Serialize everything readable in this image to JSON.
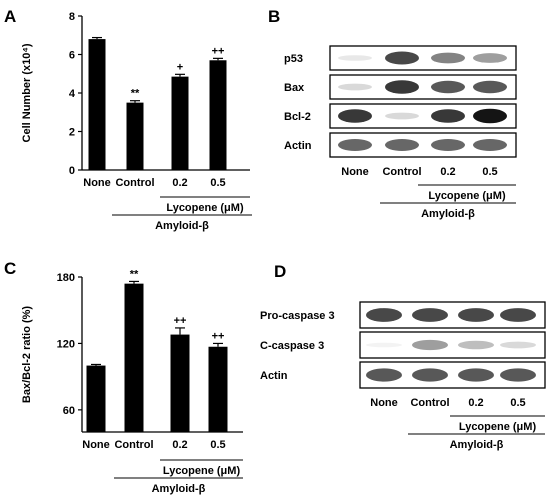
{
  "panel_letters": [
    "A",
    "B",
    "C",
    "D"
  ],
  "chart_data": [
    {
      "panel": "A",
      "type": "bar",
      "categories": [
        "None",
        "Control",
        "0.2",
        "0.5"
      ],
      "values": [
        6.8,
        3.5,
        4.85,
        5.7
      ],
      "errors": [
        0.08,
        0.1,
        0.12,
        0.1
      ],
      "significance": [
        "",
        "**",
        "+",
        "++"
      ],
      "ylabel": "Cell Number (x10⁴)",
      "yticks": [
        "0",
        "2",
        "4",
        "6",
        "8"
      ],
      "ylim": [
        0,
        8
      ],
      "group_labels": [
        "Lycopene (μM)",
        "Amyloid-β"
      ],
      "grid": false
    },
    {
      "panel": "C",
      "type": "bar",
      "categories": [
        "None",
        "Control",
        "0.2",
        "0.5"
      ],
      "values": [
        100,
        174,
        128,
        117
      ],
      "errors": [
        1,
        2,
        6,
        3
      ],
      "significance": [
        "",
        "**",
        "++",
        "++"
      ],
      "ylabel": "Bax/Bcl-2 ratio (%)",
      "yticks": [
        "60",
        "120",
        "180"
      ],
      "ylim": [
        40,
        180
      ],
      "group_labels": [
        "Lycopene (μM)",
        "Amyloid-β"
      ],
      "grid": false
    }
  ],
  "blots": [
    {
      "panel": "B",
      "rows": [
        "p53",
        "Bax",
        "Bcl-2",
        "Actin"
      ],
      "lanes": [
        "None",
        "Control",
        "0.2",
        "0.5"
      ],
      "intensity": [
        [
          0.15,
          0.85,
          0.65,
          0.55
        ],
        [
          0.25,
          0.9,
          0.8,
          0.8
        ],
        [
          0.9,
          0.25,
          0.9,
          1.0
        ],
        [
          0.75,
          0.75,
          0.75,
          0.75
        ]
      ],
      "group_labels": [
        "Lycopene (μM)",
        "Amyloid-β"
      ]
    },
    {
      "panel": "D",
      "rows": [
        "Pro-caspase 3",
        "C-caspase 3",
        "Actin"
      ],
      "lanes": [
        "None",
        "Control",
        "0.2",
        "0.5"
      ],
      "intensity": [
        [
          0.85,
          0.85,
          0.85,
          0.85
        ],
        [
          0.05,
          0.55,
          0.4,
          0.25
        ],
        [
          0.8,
          0.8,
          0.8,
          0.8
        ]
      ],
      "group_labels": [
        "Lycopene (μM)",
        "Amyloid-β"
      ]
    }
  ]
}
